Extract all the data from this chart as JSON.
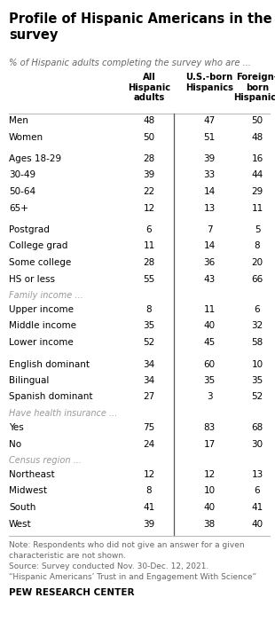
{
  "title": "Profile of Hispanic Americans in the\nsurvey",
  "subtitle": "% of Hispanic adults completing the survey who are ...",
  "col_headers": [
    "All\nHispanic\nadults",
    "U.S.-born\nHispanics",
    "Foreign-\nborn\nHispanics"
  ],
  "rows": [
    {
      "label": "Men",
      "values": [
        "48",
        "47",
        "50"
      ],
      "italic": false,
      "spacer": false
    },
    {
      "label": "Women",
      "values": [
        "50",
        "51",
        "48"
      ],
      "italic": false,
      "spacer": false
    },
    {
      "label": "",
      "values": [
        "",
        "",
        ""
      ],
      "italic": false,
      "spacer": true
    },
    {
      "label": "Ages 18-29",
      "values": [
        "28",
        "39",
        "16"
      ],
      "italic": false,
      "spacer": false
    },
    {
      "label": "30-49",
      "values": [
        "39",
        "33",
        "44"
      ],
      "italic": false,
      "spacer": false
    },
    {
      "label": "50-64",
      "values": [
        "22",
        "14",
        "29"
      ],
      "italic": false,
      "spacer": false
    },
    {
      "label": "65+",
      "values": [
        "12",
        "13",
        "11"
      ],
      "italic": false,
      "spacer": false
    },
    {
      "label": "",
      "values": [
        "",
        "",
        ""
      ],
      "italic": false,
      "spacer": true
    },
    {
      "label": "Postgrad",
      "values": [
        "6",
        "7",
        "5"
      ],
      "italic": false,
      "spacer": false
    },
    {
      "label": "College grad",
      "values": [
        "11",
        "14",
        "8"
      ],
      "italic": false,
      "spacer": false
    },
    {
      "label": "Some college",
      "values": [
        "28",
        "36",
        "20"
      ],
      "italic": false,
      "spacer": false
    },
    {
      "label": "HS or less",
      "values": [
        "55",
        "43",
        "66"
      ],
      "italic": false,
      "spacer": false
    },
    {
      "label": "Family income ...",
      "values": [
        "",
        "",
        ""
      ],
      "italic": true,
      "spacer": false
    },
    {
      "label": "Upper income",
      "values": [
        "8",
        "11",
        "6"
      ],
      "italic": false,
      "spacer": false
    },
    {
      "label": "Middle income",
      "values": [
        "35",
        "40",
        "32"
      ],
      "italic": false,
      "spacer": false
    },
    {
      "label": "Lower income",
      "values": [
        "52",
        "45",
        "58"
      ],
      "italic": false,
      "spacer": false
    },
    {
      "label": "",
      "values": [
        "",
        "",
        ""
      ],
      "italic": false,
      "spacer": true
    },
    {
      "label": "English dominant",
      "values": [
        "34",
        "60",
        "10"
      ],
      "italic": false,
      "spacer": false
    },
    {
      "label": "Bilingual",
      "values": [
        "34",
        "35",
        "35"
      ],
      "italic": false,
      "spacer": false
    },
    {
      "label": "Spanish dominant",
      "values": [
        "27",
        "3",
        "52"
      ],
      "italic": false,
      "spacer": false
    },
    {
      "label": "Have health insurance ...",
      "values": [
        "",
        "",
        ""
      ],
      "italic": true,
      "spacer": false
    },
    {
      "label": "Yes",
      "values": [
        "75",
        "83",
        "68"
      ],
      "italic": false,
      "spacer": false
    },
    {
      "label": "No",
      "values": [
        "24",
        "17",
        "30"
      ],
      "italic": false,
      "spacer": false
    },
    {
      "label": "Census region ...",
      "values": [
        "",
        "",
        ""
      ],
      "italic": true,
      "spacer": false
    },
    {
      "label": "Northeast",
      "values": [
        "12",
        "12",
        "13"
      ],
      "italic": false,
      "spacer": false
    },
    {
      "label": "Midwest",
      "values": [
        "8",
        "10",
        "6"
      ],
      "italic": false,
      "spacer": false
    },
    {
      "label": "South",
      "values": [
        "41",
        "40",
        "41"
      ],
      "italic": false,
      "spacer": false
    },
    {
      "label": "West",
      "values": [
        "39",
        "38",
        "40"
      ],
      "italic": false,
      "spacer": false
    }
  ],
  "note_lines": [
    "Note: Respondents who did not give an answer for a given",
    "characteristic are not shown.",
    "Source: Survey conducted Nov. 30-Dec. 12, 2021.",
    "“Hispanic Americans’ Trust in and Engagement With Science”"
  ],
  "footer": "PEW RESEARCH CENTER",
  "bg_color": "#ffffff",
  "title_color": "#000000",
  "subtitle_color": "#666666",
  "header_color": "#000000",
  "row_label_color": "#000000",
  "italic_color": "#999999",
  "value_color": "#000000",
  "note_color": "#666666",
  "footer_color": "#000000",
  "divider_color": "#bbbbbb",
  "col_divider_color": "#555555"
}
